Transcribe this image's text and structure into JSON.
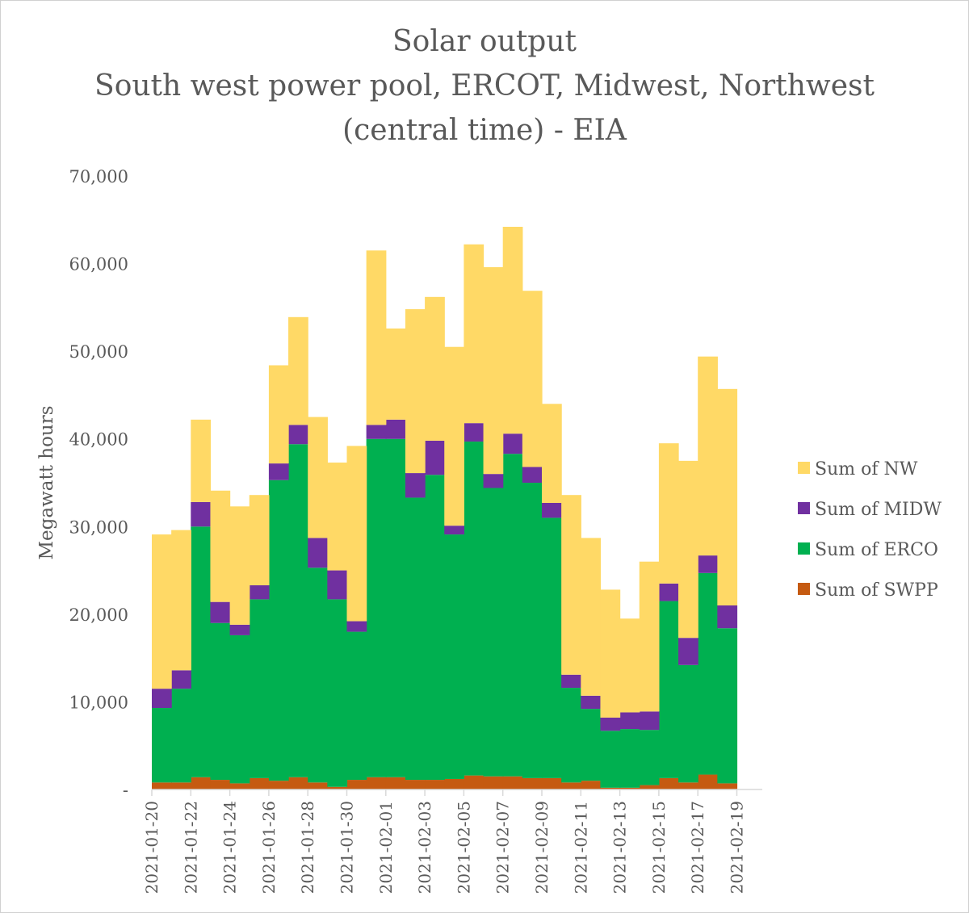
{
  "chart_data": {
    "type": "bar",
    "stacked": true,
    "title_lines": [
      "Solar output",
      "South west power pool, ERCOT, Midwest, Northwest",
      "(central time) - EIA"
    ],
    "ylabel": "Megawatt hours",
    "xlabel": "",
    "ylim": [
      0,
      70000
    ],
    "yticks": [
      0,
      10000,
      20000,
      30000,
      40000,
      50000,
      60000,
      70000
    ],
    "ytick_labels": [
      "-",
      "10,000",
      "20,000",
      "30,000",
      "40,000",
      "50,000",
      "60,000",
      "70,000"
    ],
    "tick_labels": [
      "2021-01-20",
      "2021-01-22",
      "2021-01-24",
      "2021-01-26",
      "2021-01-28",
      "2021-01-30",
      "2021-02-01",
      "2021-02-03",
      "2021-02-05",
      "2021-02-07",
      "2021-02-09",
      "2021-02-11",
      "2021-02-13",
      "2021-02-15",
      "2021-02-17",
      "2021-02-19"
    ],
    "categories": [
      "2021-01-20",
      "2021-01-21",
      "2021-01-22",
      "2021-01-23",
      "2021-01-24",
      "2021-01-25",
      "2021-01-26",
      "2021-01-27",
      "2021-01-28",
      "2021-01-29",
      "2021-01-30",
      "2021-01-31",
      "2021-02-01",
      "2021-02-02",
      "2021-02-03",
      "2021-02-04",
      "2021-02-05",
      "2021-02-06",
      "2021-02-07",
      "2021-02-08",
      "2021-02-09",
      "2021-02-10",
      "2021-02-11",
      "2021-02-12",
      "2021-02-13",
      "2021-02-14",
      "2021-02-15",
      "2021-02-16",
      "2021-02-17",
      "2021-02-18"
    ],
    "legend_position": "right",
    "series": [
      {
        "name": "Sum of SWPP",
        "color": "#C55A11",
        "values": [
          800,
          800,
          1400,
          1100,
          700,
          1300,
          1000,
          1400,
          800,
          300,
          1100,
          1400,
          1400,
          1100,
          1100,
          1200,
          1600,
          1500,
          1500,
          1300,
          1300,
          800,
          1000,
          200,
          200,
          500,
          1300,
          800,
          1700,
          700
        ]
      },
      {
        "name": "Sum of ERCO",
        "color": "#00B050",
        "values": [
          8500,
          10700,
          28600,
          17900,
          16900,
          20400,
          34300,
          38000,
          24500,
          21400,
          16900,
          38600,
          38600,
          32200,
          34800,
          27900,
          38100,
          32900,
          36800,
          33700,
          29700,
          10800,
          8200,
          6500,
          6700,
          6300,
          20200,
          13400,
          23000,
          17700
        ]
      },
      {
        "name": "Sum of MIDW",
        "color": "#7030A0",
        "values": [
          2200,
          2100,
          2800,
          2400,
          1200,
          1600,
          1900,
          2200,
          3400,
          3300,
          1200,
          1600,
          2200,
          2800,
          3900,
          1000,
          2100,
          1600,
          2300,
          1800,
          1700,
          1500,
          1500,
          1500,
          1900,
          2100,
          2000,
          3100,
          2000,
          2600
        ]
      },
      {
        "name": "Sum of NW",
        "color": "#FFD966",
        "values": [
          17600,
          16000,
          9400,
          12700,
          13500,
          10300,
          11200,
          12300,
          13800,
          12300,
          20000,
          19900,
          10400,
          18700,
          16400,
          20400,
          20400,
          23600,
          23600,
          20100,
          11300,
          20500,
          18000,
          14600,
          10700,
          17100,
          16000,
          20200,
          22700,
          24700
        ]
      }
    ]
  }
}
